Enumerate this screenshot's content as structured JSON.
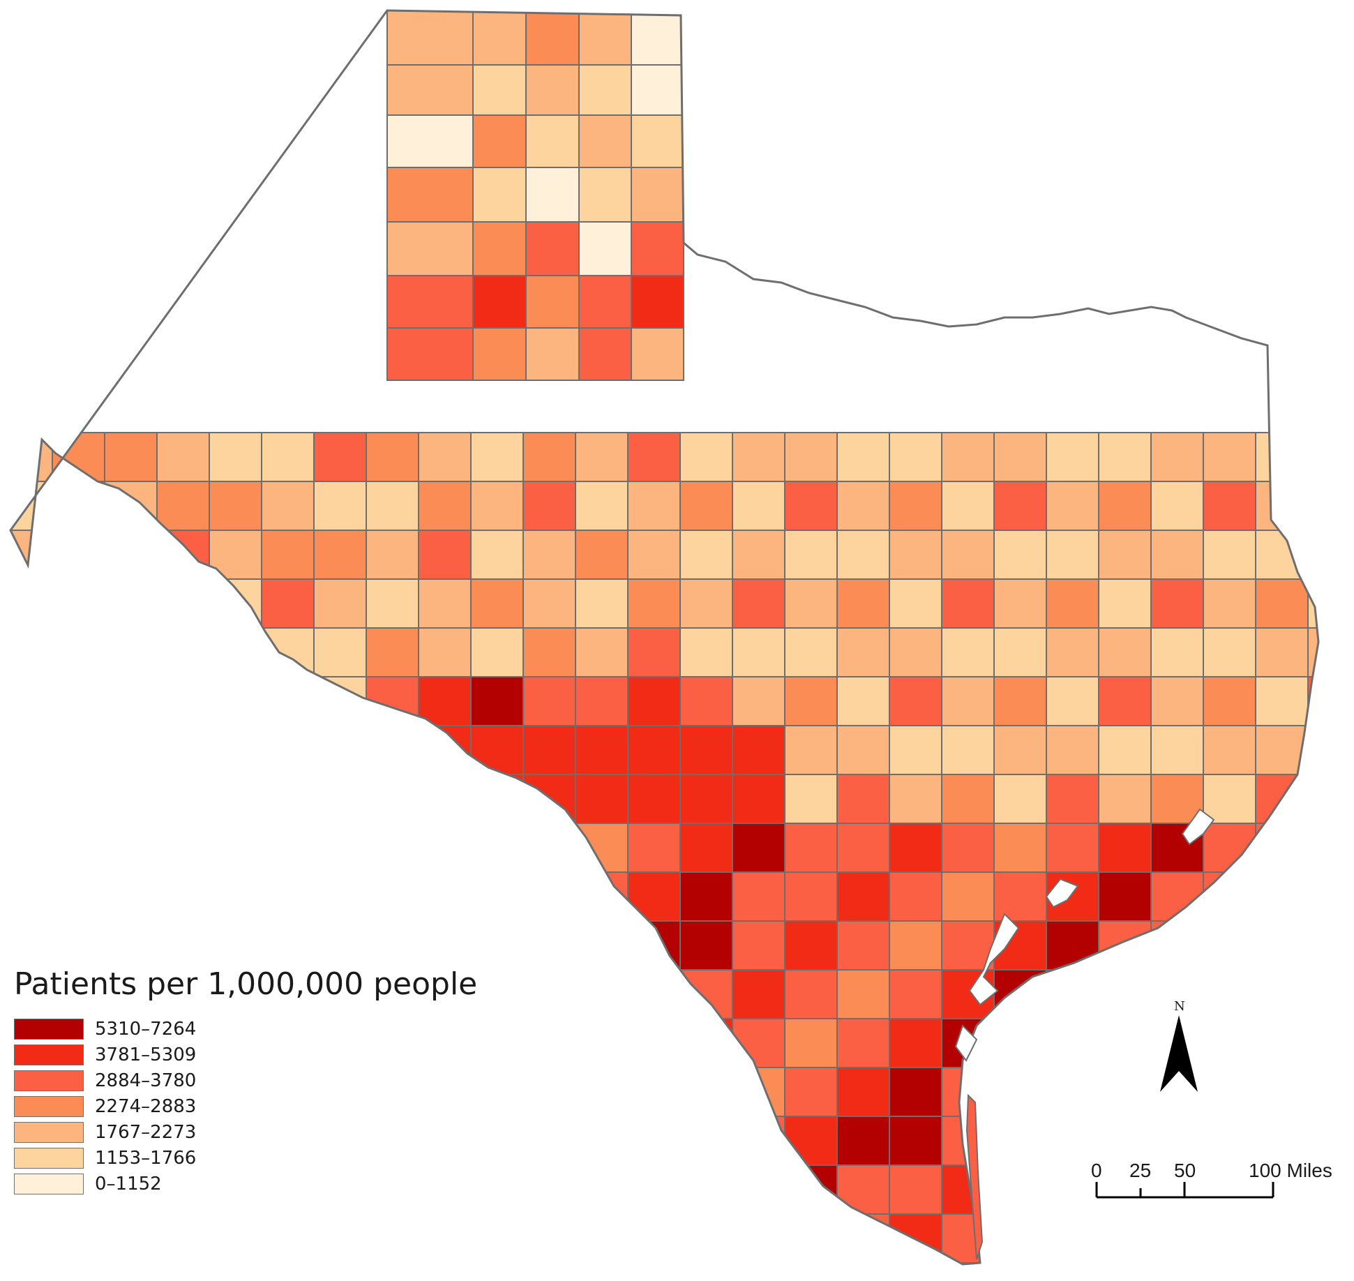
{
  "legend": {
    "title": "Patients per 1,000,000 people",
    "classes": [
      {
        "label": "5310–7264",
        "color": "#b30000"
      },
      {
        "label": "3781–5309",
        "color": "#f22b17"
      },
      {
        "label": "2884–3780",
        "color": "#fb6045"
      },
      {
        "label": "2274–2883",
        "color": "#fc8c55"
      },
      {
        "label": "1767–2273",
        "color": "#fdb57f"
      },
      {
        "label": "1153–1766",
        "color": "#fdd49e"
      },
      {
        "label": "0–1152",
        "color": "#fef0d9"
      }
    ]
  },
  "north_arrow": {
    "label": "N"
  },
  "scale_bar": {
    "labels": [
      "0",
      "25",
      "50",
      "100 Miles"
    ]
  },
  "colors": {
    "border": "#6e6e6e",
    "water": "#ffffff"
  }
}
